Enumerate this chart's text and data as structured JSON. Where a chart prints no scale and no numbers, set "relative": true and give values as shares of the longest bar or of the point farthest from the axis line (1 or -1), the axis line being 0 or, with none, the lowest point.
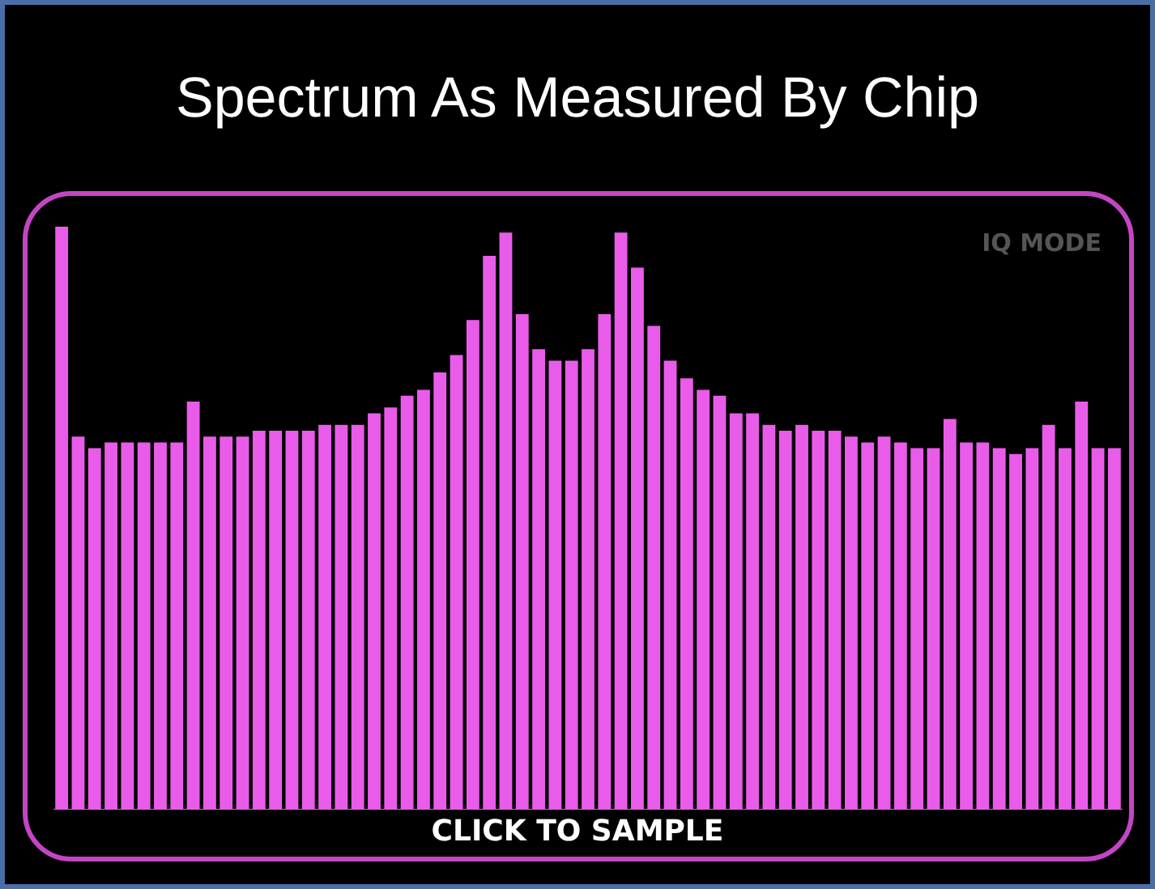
{
  "chart_data": {
    "type": "bar",
    "title": "Spectrum As Measured By Chip",
    "relative": true,
    "legend": false,
    "annotations": [
      "IQ MODE",
      "CLICK TO SAMPLE"
    ],
    "categories": [
      null,
      null,
      null,
      null,
      null,
      null,
      null,
      null,
      null,
      null,
      null,
      null,
      null,
      null,
      null,
      null,
      null,
      null,
      null,
      null,
      null,
      null,
      null,
      null,
      null,
      null,
      null,
      null,
      null,
      null,
      null,
      null,
      null,
      null,
      null,
      null,
      null,
      null,
      null,
      null,
      null,
      null,
      null,
      null,
      null,
      null,
      null,
      null,
      null,
      null,
      null,
      null,
      null,
      null,
      null,
      null,
      null,
      null,
      null,
      null,
      null,
      null,
      null,
      null,
      null
    ],
    "values": [
      1.0,
      0.64,
      0.62,
      0.63,
      0.63,
      0.63,
      0.63,
      0.63,
      0.7,
      0.64,
      0.64,
      0.64,
      0.65,
      0.65,
      0.65,
      0.65,
      0.66,
      0.66,
      0.66,
      0.68,
      0.69,
      0.71,
      0.72,
      0.75,
      0.78,
      0.84,
      0.95,
      0.99,
      0.85,
      0.79,
      0.77,
      0.77,
      0.79,
      0.85,
      0.99,
      0.93,
      0.83,
      0.77,
      0.74,
      0.72,
      0.71,
      0.68,
      0.68,
      0.66,
      0.65,
      0.66,
      0.65,
      0.65,
      0.64,
      0.63,
      0.64,
      0.63,
      0.62,
      0.62,
      0.67,
      0.63,
      0.63,
      0.62,
      0.61,
      0.62,
      0.66,
      0.62,
      0.7,
      0.62,
      0.62
    ],
    "color": "#e95ce9"
  }
}
